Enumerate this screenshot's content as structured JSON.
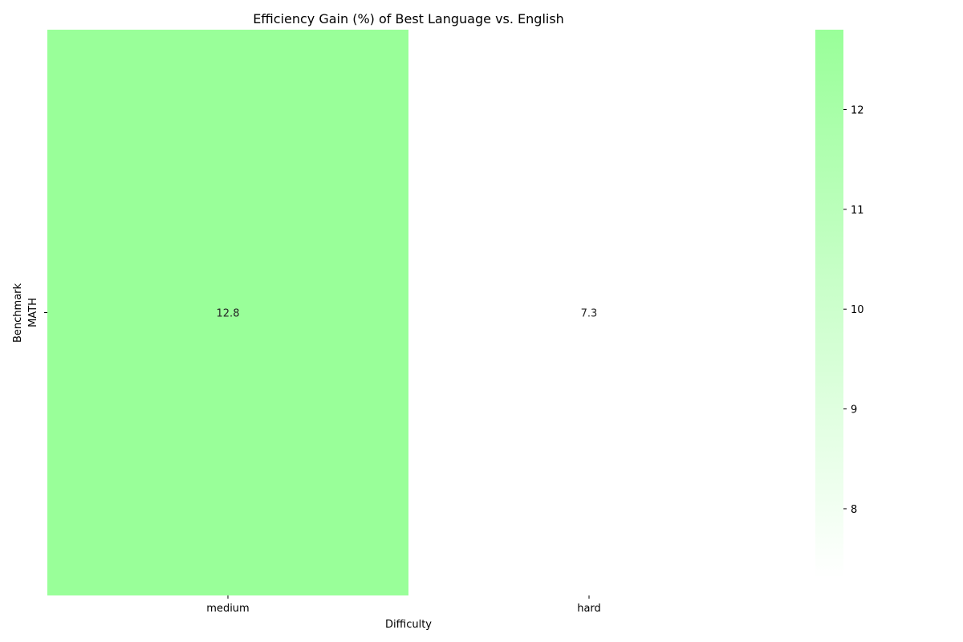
{
  "chart_data": {
    "type": "heatmap",
    "title": "Efficiency Gain (%) of Best Language vs. English",
    "xlabel": "Difficulty",
    "ylabel": "Benchmark",
    "x_categories": [
      "medium",
      "hard"
    ],
    "y_categories": [
      "MATH"
    ],
    "values": [
      [
        12.8,
        7.3
      ]
    ],
    "colorbar": {
      "min": 7.3,
      "max": 12.8,
      "ticks": [
        8,
        9,
        10,
        11,
        12
      ],
      "color_low": "#ffffff",
      "color_high": "#99ff99"
    },
    "annotation_color": "#262626"
  }
}
